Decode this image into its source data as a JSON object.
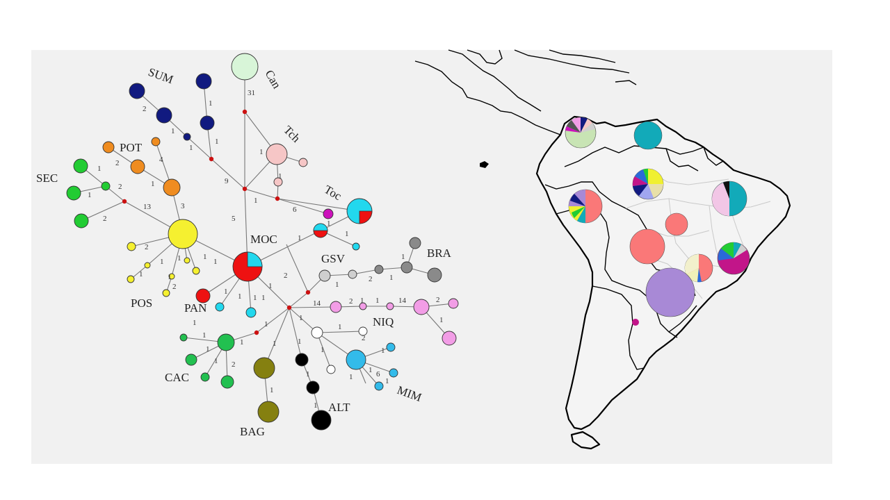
{
  "figure": {
    "network_labels": {
      "sum": "SUM",
      "can": "Can",
      "pot": "POT",
      "tch": "Tch",
      "sec": "SEC",
      "toc": "Toc",
      "moc": "MOC",
      "bra": "BRA",
      "gsv": "GSV",
      "pos": "POS",
      "pan": "PAN",
      "niq": "NIQ",
      "cac": "CAC",
      "mim": "MIM",
      "alt": "ALT",
      "bag": "BAG"
    },
    "mutation_counts": {
      "m01": "2",
      "m02": "1",
      "m03": "1",
      "m04": "1",
      "m05": "1",
      "m06": "31",
      "m07": "1",
      "m08": "4",
      "m09": "2",
      "m10": "1",
      "m11": "1",
      "m12": "9",
      "m13": "1",
      "m14": "2",
      "m15": "1",
      "m16": "13",
      "m17": "2",
      "m18": "3",
      "m19": "1",
      "m20": "6",
      "m21": "5",
      "m22": "1",
      "m23": "1",
      "m24": "1",
      "m25": "2",
      "m26": "1",
      "m27": "1",
      "m28": "1",
      "m29": "1",
      "m30": "1",
      "m31": "2",
      "m32": "2",
      "m33": "1",
      "m34": "1",
      "m35": "1",
      "m36": "2",
      "m37": "1",
      "m38": "1",
      "m39": "1",
      "m40": "1",
      "m41": "1",
      "m42": "1",
      "m43": "14",
      "m44": "2",
      "m45": "1",
      "m46": "1",
      "m47": "14",
      "m48": "2",
      "m49": "1",
      "m50": "1",
      "m51": "1",
      "m52": "1",
      "m53": "1",
      "m54": "1",
      "m55": "2",
      "m56": "1",
      "m57": "1",
      "m58": "1",
      "m59": "1",
      "m60": "1",
      "m61": "1",
      "m62": "6",
      "m63": "1",
      "m64": "1",
      "m65": "1",
      "m66": "1",
      "m67": "2",
      "m68": "1",
      "m69": "1",
      "m70": "1"
    },
    "colors": {
      "sum": "#111a80",
      "can": "#d8f5d8",
      "pot": "#ef8c20",
      "sec": "#22cc33",
      "pos": "#f5f030",
      "moc": "#ee1111",
      "toc": "#cc11bb",
      "tch": "#f6c6c6",
      "gsv": "#cfcfcf",
      "bra": "#8a8a8a",
      "niq": "#f29de6",
      "cac": "#22c050",
      "bag": "#858010",
      "alt": "#000000",
      "mim": "#33bbea",
      "pan": "#ee1111",
      "cyan": "#22d8ee",
      "salmon": "#fa7878",
      "lavender": "#a889d6",
      "teal": "#12aab9",
      "magenta": "#c21589"
    }
  }
}
